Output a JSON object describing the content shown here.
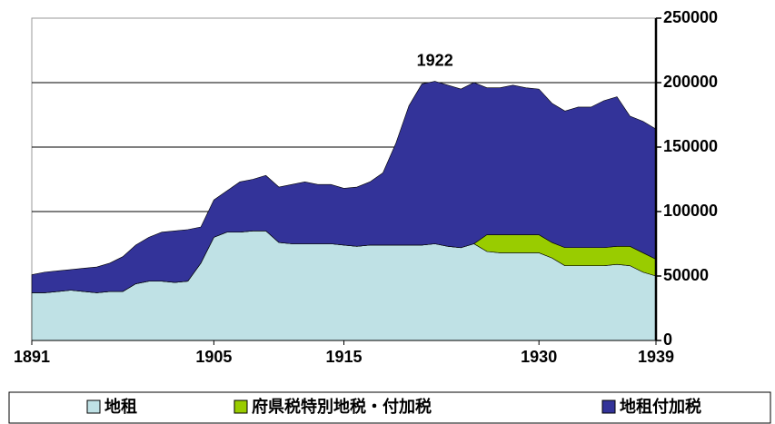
{
  "chart_data": {
    "type": "stacked_area",
    "annotation": {
      "text": "1922",
      "x": 1922
    },
    "x": [
      1891,
      1892,
      1893,
      1894,
      1895,
      1896,
      1897,
      1898,
      1899,
      1900,
      1901,
      1902,
      1903,
      1904,
      1905,
      1906,
      1907,
      1908,
      1909,
      1910,
      1911,
      1912,
      1913,
      1914,
      1915,
      1916,
      1917,
      1918,
      1919,
      1920,
      1921,
      1922,
      1923,
      1924,
      1925,
      1926,
      1927,
      1928,
      1929,
      1930,
      1931,
      1932,
      1933,
      1934,
      1935,
      1936,
      1937,
      1938,
      1939
    ],
    "xlim": [
      1891,
      1939
    ],
    "xticks": [
      1891,
      1905,
      1915,
      1930,
      1939
    ],
    "ylim": [
      0,
      250000
    ],
    "yticks": [
      0,
      50000,
      100000,
      150000,
      200000,
      250000
    ],
    "grid": true,
    "legend": "bottom",
    "series": [
      {
        "name": "地租",
        "color": "#bfe1e5",
        "values": [
          37000,
          37000,
          38000,
          39000,
          38000,
          37000,
          38000,
          38000,
          44000,
          46000,
          46000,
          45000,
          46000,
          60000,
          80000,
          84000,
          84000,
          85000,
          85000,
          76000,
          75000,
          75000,
          75000,
          75000,
          74000,
          73000,
          74000,
          74000,
          74000,
          74000,
          74000,
          75000,
          73000,
          72000,
          75000,
          69000,
          68000,
          68000,
          68000,
          68000,
          64000,
          58000,
          58000,
          58000,
          58000,
          59000,
          58000,
          53000,
          50000
        ]
      },
      {
        "name": "府県税特別地税・付加税",
        "color": "#99cc00",
        "values": [
          0,
          0,
          0,
          0,
          0,
          0,
          0,
          0,
          0,
          0,
          0,
          0,
          0,
          0,
          0,
          0,
          0,
          0,
          0,
          0,
          0,
          0,
          0,
          0,
          0,
          0,
          0,
          0,
          0,
          0,
          0,
          0,
          0,
          0,
          0,
          13000,
          14000,
          14000,
          14000,
          14000,
          12000,
          14000,
          14000,
          14000,
          14000,
          14000,
          15000,
          15000,
          13000
        ]
      },
      {
        "name": "地租付加税",
        "color": "#333399",
        "values": [
          14000,
          16000,
          16000,
          16000,
          18000,
          20000,
          22000,
          27000,
          30000,
          34000,
          38000,
          40000,
          40000,
          28000,
          29000,
          32000,
          39000,
          40000,
          43000,
          43000,
          46000,
          48000,
          46000,
          46000,
          44000,
          46000,
          49000,
          56000,
          79000,
          108000,
          125000,
          126000,
          125000,
          123000,
          125000,
          114000,
          114000,
          116000,
          114000,
          113000,
          108000,
          106000,
          109000,
          109000,
          114000,
          116000,
          101000,
          102000,
          101000
        ]
      }
    ]
  }
}
